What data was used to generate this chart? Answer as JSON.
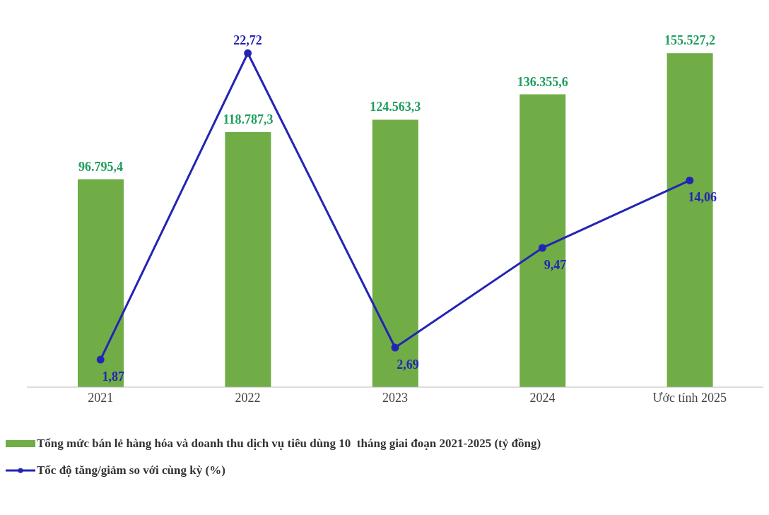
{
  "chart_data": {
    "type": "bar",
    "categories": [
      "2021",
      "2022",
      "2023",
      "2024",
      "Ước tính 2025"
    ],
    "legend": "bottom",
    "series": [
      {
        "name": "Tổng mức bán lẻ hàng hóa và doanh thu dịch vụ tiêu dùng 10  tháng giai đoạn 2021-2025 (tỷ đồng)",
        "color": "#70ad47",
        "values": [
          96795.4,
          118787.3,
          124563.3,
          136355.6,
          155527.2
        ],
        "value_labels": [
          "96.795,4",
          "118.787,3",
          "124.563,3",
          "136.355,6",
          "155.527,2"
        ]
      },
      {
        "type": "line",
        "axis": "y2",
        "name": "Tốc độ tăng/giảm so với cùng kỳ (%)",
        "color": "#2424b4",
        "values": [
          1.87,
          22.72,
          2.69,
          9.47,
          14.06
        ],
        "value_labels": [
          "1,87",
          "22,72",
          "2,69",
          "9,47",
          "14,06"
        ],
        "marker": "circle"
      }
    ]
  }
}
